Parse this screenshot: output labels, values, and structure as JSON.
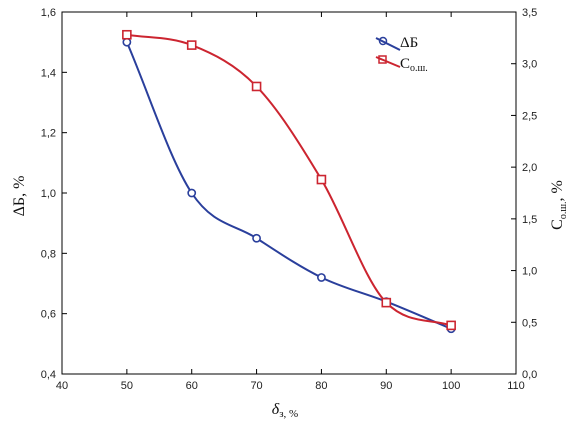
{
  "chart_data": {
    "type": "line",
    "x": [
      50,
      60,
      70,
      80,
      90,
      100
    ],
    "xlabel": "δз, %",
    "xlabel_main": "δ",
    "xlabel_sub": "з, %",
    "xlim": [
      40,
      110
    ],
    "xticks": [
      40,
      50,
      60,
      70,
      80,
      90,
      100,
      110
    ],
    "ylabel_left": "ΔБ, %",
    "ylim_left": [
      0.4,
      1.6
    ],
    "yticks_left": [
      "0,4",
      "0,6",
      "0,8",
      "1,0",
      "1,2",
      "1,4",
      "1,6"
    ],
    "ylabel_right_main": "C",
    "ylabel_right_sub": "о.ш.",
    "ylabel_right_unit": ", %",
    "ylim_right": [
      0,
      3.5
    ],
    "yticks_right": [
      "0,0",
      "0,5",
      "1,0",
      "1,5",
      "2,0",
      "2,5",
      "3,0",
      "3,5"
    ],
    "grid": false,
    "legend_position": "top-right",
    "series": [
      {
        "name": "ΔБ",
        "axis": "left",
        "marker": "circle",
        "color": "#2a3f9c",
        "values": [
          1.5,
          1.0,
          0.85,
          0.72,
          0.64,
          0.55
        ]
      },
      {
        "name": "C о.ш.",
        "name_main": "C",
        "name_sub": "о.ш.",
        "axis": "right",
        "marker": "square",
        "color": "#cc2530",
        "values": [
          3.28,
          3.18,
          2.78,
          1.88,
          0.69,
          0.47
        ]
      }
    ]
  }
}
